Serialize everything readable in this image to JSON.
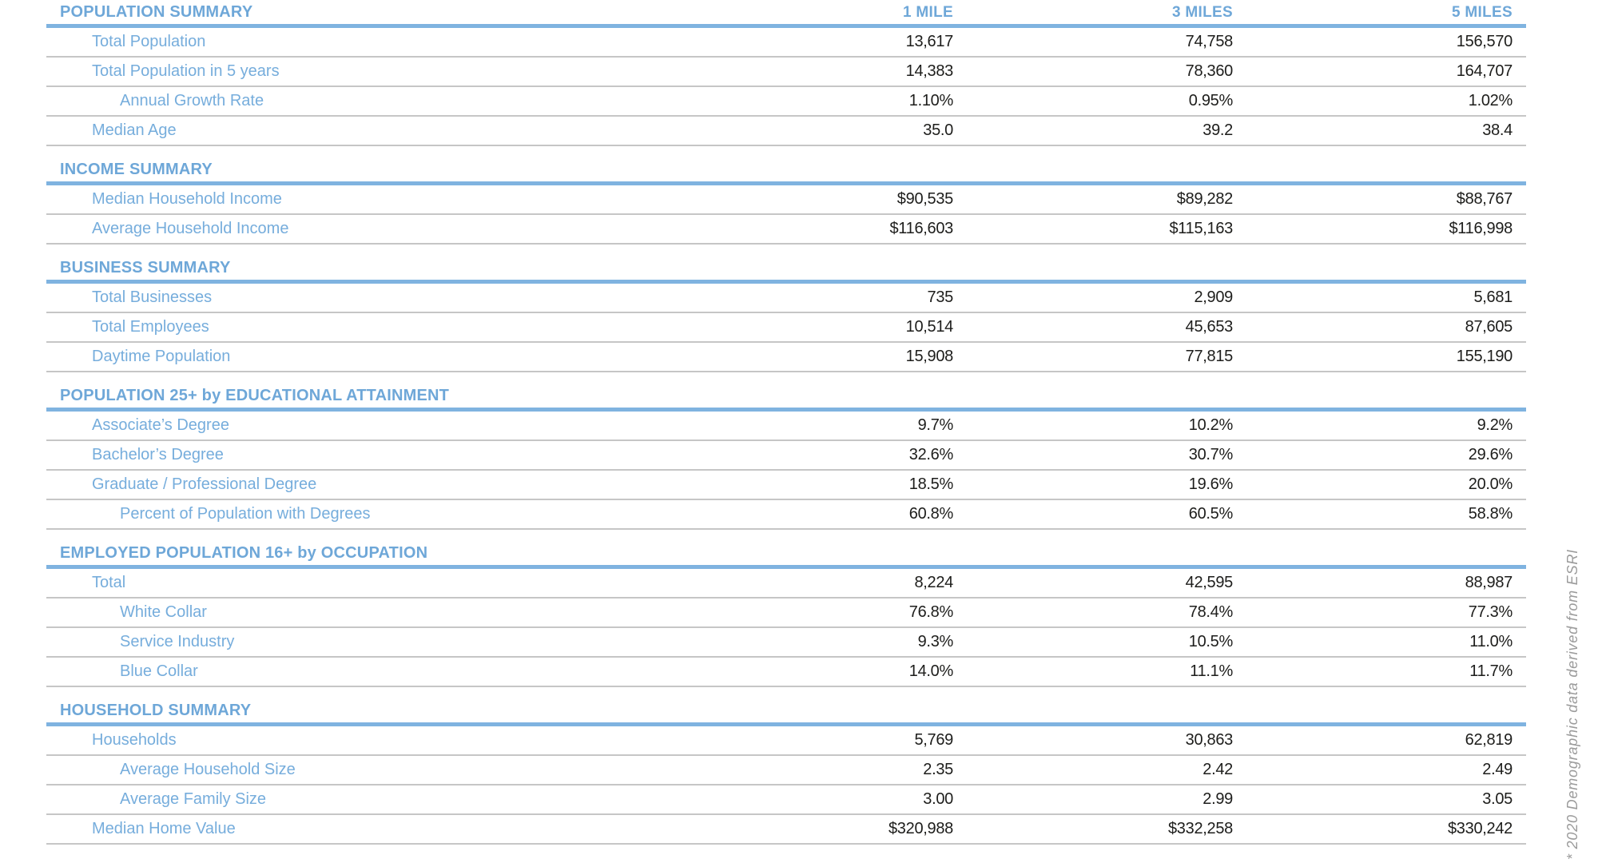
{
  "table": {
    "columns": [
      "1 MILE",
      "3 MILES",
      "5 MILES"
    ],
    "sections": [
      {
        "title": "POPULATION SUMMARY",
        "rows": [
          {
            "label": "Total Population",
            "values": [
              "13,617",
              "74,758",
              "156,570"
            ]
          },
          {
            "label": "Total Population in 5 years",
            "values": [
              "14,383",
              "78,360",
              "164,707"
            ]
          },
          {
            "label": "Annual Growth Rate",
            "values": [
              "1.10%",
              "0.95%",
              "1.02%"
            ]
          },
          {
            "label": "Median Age",
            "values": [
              "35.0",
              "39.2",
              "38.4"
            ]
          }
        ]
      },
      {
        "title": "INCOME SUMMARY",
        "rows": [
          {
            "label": "Median Household Income",
            "values": [
              "$90,535",
              "$89,282",
              "$88,767"
            ]
          },
          {
            "label": "Average Household Income",
            "values": [
              "$116,603",
              "$115,163",
              "$116,998"
            ]
          }
        ]
      },
      {
        "title": "BUSINESS SUMMARY",
        "rows": [
          {
            "label": "Total Businesses",
            "values": [
              "735",
              "2,909",
              "5,681"
            ]
          },
          {
            "label": "Total Employees",
            "values": [
              "10,514",
              "45,653",
              "87,605"
            ]
          },
          {
            "label": "Daytime Population",
            "values": [
              "15,908",
              "77,815",
              "155,190"
            ]
          }
        ]
      },
      {
        "title": "POPULATION 25+ by EDUCATIONAL ATTAINMENT",
        "rows": [
          {
            "label": "Associate’s Degree",
            "values": [
              "9.7%",
              "10.2%",
              "9.2%"
            ]
          },
          {
            "label": "Bachelor’s Degree",
            "values": [
              "32.6%",
              "30.7%",
              "29.6%"
            ]
          },
          {
            "label": "Graduate / Professional Degree",
            "values": [
              "18.5%",
              "19.6%",
              "20.0%"
            ]
          },
          {
            "label": "Percent of Population with Degrees",
            "values": [
              "60.8%",
              "60.5%",
              "58.8%"
            ]
          }
        ]
      },
      {
        "title": "EMPLOYED POPULATION 16+ by OCCUPATION",
        "rows": [
          {
            "label": "Total",
            "values": [
              "8,224",
              "42,595",
              "88,987"
            ]
          },
          {
            "label": "White Collar",
            "values": [
              "76.8%",
              "78.4%",
              "77.3%"
            ]
          },
          {
            "label": "Service Industry",
            "values": [
              "9.3%",
              "10.5%",
              "11.0%"
            ]
          },
          {
            "label": "Blue Collar",
            "values": [
              "14.0%",
              "11.1%",
              "11.7%"
            ]
          }
        ]
      },
      {
        "title": "HOUSEHOLD SUMMARY",
        "rows": [
          {
            "label": "Households",
            "values": [
              "5,769",
              "30,863",
              "62,819"
            ]
          },
          {
            "label": "Average Household Size",
            "values": [
              "2.35",
              "2.42",
              "2.49"
            ]
          },
          {
            "label": "Average Family Size",
            "values": [
              "3.00",
              "2.99",
              "3.05"
            ]
          },
          {
            "label": "Median Home Value",
            "values": [
              "$320,988",
              "$332,258",
              "$330,242"
            ]
          }
        ]
      }
    ]
  },
  "footnote": "* 2020 Demographic data derived from ESRI",
  "colors": {
    "accent_blue": "#6EA7D8",
    "rule_blue": "#7FB3E0",
    "label_blue": "#76ADDC",
    "value_dark": "#1d1d1b",
    "rule_gray": "#c6c6c6",
    "footnote_gray": "#9b9b9b"
  }
}
